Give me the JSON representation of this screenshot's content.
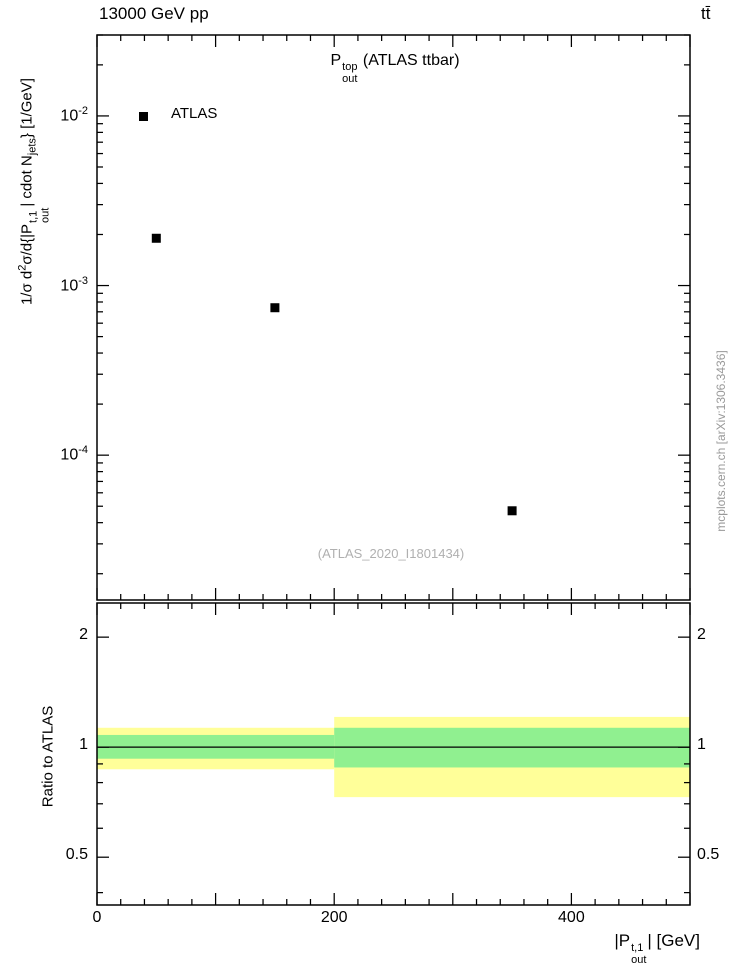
{
  "header": {
    "left_title": "13000 GeV pp",
    "right_title": "tt̄"
  },
  "main_panel": {
    "title": {
      "base": "P",
      "sup": "top",
      "sub": "out",
      "suffix": " (ATLAS ttbar)"
    },
    "legend": {
      "label": "ATLAS"
    },
    "watermark": "(ATLAS_2020_I1801434)"
  },
  "side_note": "mcplots.cern.ch [arXiv:1306.3436]",
  "axes": {
    "x": {
      "min": 0,
      "max": 500,
      "major_step": 100,
      "minor_step": 20,
      "labeled": [
        0,
        200,
        400
      ],
      "label": {
        "p1": "|P",
        "sup": "t,1",
        "sub": "out",
        "p2": "| [GeV]"
      }
    },
    "y_main": {
      "scale": "log",
      "min": 1.4e-05,
      "max": 0.03,
      "decade_exponents": [
        -2,
        -3,
        -4
      ],
      "label": {
        "p1": "1/σ d",
        "sup1": "2",
        "p2": "σ/d{|P",
        "sup2": "t,1",
        "sub2": "out",
        "p3": "| cdot N",
        "sub3": "jets",
        "p4": "} [1/GeV]"
      }
    },
    "y_ratio": {
      "scale": "log",
      "min": 0.37,
      "max": 2.48,
      "labeled": [
        0.5,
        1,
        2
      ],
      "minor": [
        0.4,
        0.6,
        0.7,
        0.8,
        0.9
      ],
      "label": "Ratio to ATLAS"
    }
  },
  "chart_data": [
    {
      "type": "scatter",
      "title": "P_out^top (ATLAS ttbar)",
      "xlabel": "|P_out^t,1| [GeV]",
      "ylabel": "1/σ d²σ/d{|P_out^t,1| cdot N_jets} [1/GeV]",
      "xlim": [
        0,
        500
      ],
      "ylim": [
        1.4e-05,
        0.03
      ],
      "yscale": "log",
      "legend_position": "top-left",
      "series": [
        {
          "name": "ATLAS",
          "marker": "filled-square",
          "color": "#000000",
          "x": [
            50,
            150,
            350
          ],
          "y": [
            0.0019,
            0.00074,
            4.7e-05
          ]
        }
      ]
    },
    {
      "type": "area",
      "title": "Ratio to ATLAS",
      "ylabel": "Ratio to ATLAS",
      "xlim": [
        0,
        500
      ],
      "ylim": [
        0.37,
        2.48
      ],
      "yscale": "log",
      "yticks": [
        0.5,
        1,
        2
      ],
      "reference_line_y": 1,
      "bands": [
        {
          "x1": 0,
          "x2": 200,
          "yellow_lo": 0.87,
          "yellow_hi": 1.13,
          "green_lo": 0.93,
          "green_hi": 1.08
        },
        {
          "x1": 200,
          "x2": 500,
          "yellow_lo": 0.73,
          "yellow_hi": 1.21,
          "green_lo": 0.88,
          "green_hi": 1.13
        }
      ],
      "colors": {
        "yellow": "#ffff99",
        "green": "#90f090",
        "line": "#000000"
      }
    }
  ],
  "colors": {
    "marker": "#000000",
    "frame": "#000000",
    "watermark": "#b0b0b0",
    "side_note": "#999999"
  }
}
